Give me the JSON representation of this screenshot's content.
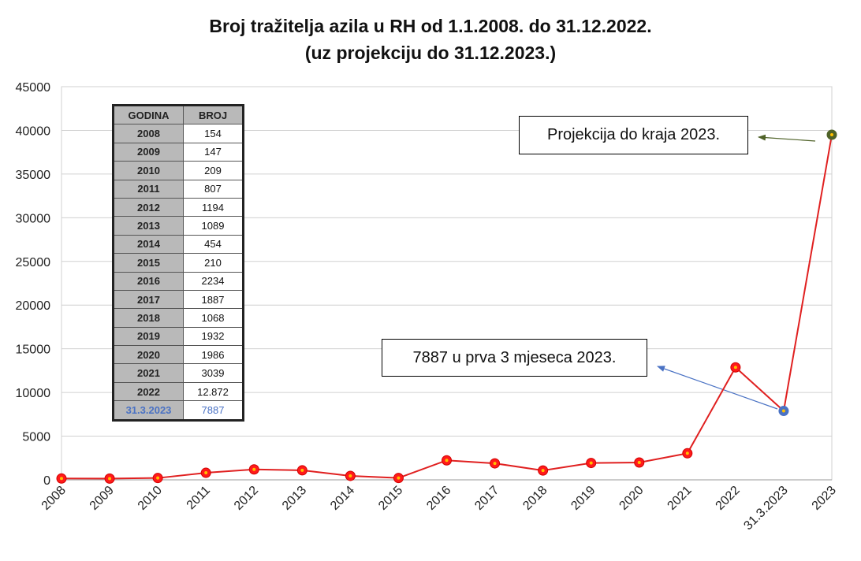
{
  "chart_data": {
    "type": "line",
    "title": "Broj tražitelja azila u RH od 1.1.2008. do 31.12.2022.",
    "subtitle": "(uz projekciju do 31.12.2023.)",
    "categories": [
      "2008",
      "2009",
      "2010",
      "2011",
      "2012",
      "2013",
      "2014",
      "2015",
      "2016",
      "2017",
      "2018",
      "2019",
      "2020",
      "2021",
      "2022",
      "31.3.2023",
      "2023"
    ],
    "series": [
      {
        "values": [
          154,
          147,
          209,
          807,
          1194,
          1089,
          454,
          210,
          2234,
          1887,
          1068,
          1932,
          1986,
          3039,
          12872,
          7887,
          39500
        ]
      }
    ],
    "special_points": {
      "31.3.2023": "#4a72c4",
      "2023": "#4f6228"
    },
    "ylim": [
      0,
      45000
    ],
    "yticks": [
      0,
      5000,
      10000,
      15000,
      20000,
      25000,
      30000,
      35000,
      40000,
      45000
    ],
    "line_color": "#e02020",
    "marker_color": "#ff1a1a",
    "grid": true,
    "annotations": [
      {
        "text": "Projekcija do kraja 2023.",
        "arrow_color": "#4f6228"
      },
      {
        "text": "7887 u prva 3 mjeseca 2023.",
        "arrow_color": "#4a72c4"
      }
    ],
    "table": {
      "headers": [
        "GODINA",
        "BROJ"
      ],
      "rows": [
        [
          "2008",
          "154"
        ],
        [
          "2009",
          "147"
        ],
        [
          "2010",
          "209"
        ],
        [
          "2011",
          "807"
        ],
        [
          "2012",
          "1194"
        ],
        [
          "2013",
          "1089"
        ],
        [
          "2014",
          "454"
        ],
        [
          "2015",
          "210"
        ],
        [
          "2016",
          "2234"
        ],
        [
          "2017",
          "1887"
        ],
        [
          "2018",
          "1068"
        ],
        [
          "2019",
          "1932"
        ],
        [
          "2020",
          "1986"
        ],
        [
          "2021",
          "3039"
        ],
        [
          "2022",
          "12.872"
        ],
        [
          "31.3.2023",
          "7887"
        ]
      ]
    }
  }
}
